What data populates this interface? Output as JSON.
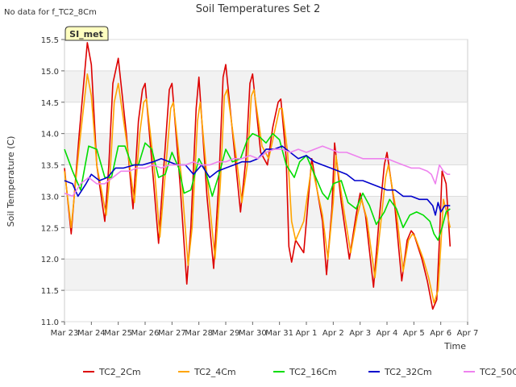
{
  "page": {
    "no_data_note": "No data for f_TC2_8Cm",
    "station_label": "SI_met"
  },
  "chart_data": {
    "type": "line",
    "title": "Soil Temperatures Set 2",
    "xlabel": "Time",
    "ylabel": "Soil Temperature (C)",
    "xlim": [
      0,
      15
    ],
    "ylim": [
      11.0,
      15.5
    ],
    "x_ticks": [
      {
        "value": 0,
        "label": "Mar 23"
      },
      {
        "value": 1,
        "label": "Mar 24"
      },
      {
        "value": 2,
        "label": "Mar 25"
      },
      {
        "value": 3,
        "label": "Mar 26"
      },
      {
        "value": 4,
        "label": "Mar 27"
      },
      {
        "value": 5,
        "label": "Mar 28"
      },
      {
        "value": 6,
        "label": "Mar 29"
      },
      {
        "value": 7,
        "label": "Mar 30"
      },
      {
        "value": 8,
        "label": "Mar 31"
      },
      {
        "value": 9,
        "label": "Apr 1"
      },
      {
        "value": 10,
        "label": "Apr 2"
      },
      {
        "value": 11,
        "label": "Apr 3"
      },
      {
        "value": 12,
        "label": "Apr 4"
      },
      {
        "value": 13,
        "label": "Apr 5"
      },
      {
        "value": 14,
        "label": "Apr 6"
      },
      {
        "value": 15,
        "label": "Apr 7"
      }
    ],
    "y_ticks": [
      "11.0",
      "11.5",
      "12.0",
      "12.5",
      "13.0",
      "13.5",
      "14.0",
      "14.5",
      "15.0",
      "15.5"
    ],
    "grid": true,
    "legend_position": "bottom",
    "series": [
      {
        "name": "TC2_2Cm",
        "color": "#dd0000",
        "x": [
          0.0,
          0.25,
          0.55,
          0.85,
          1.0,
          1.2,
          1.5,
          1.65,
          1.8,
          2.0,
          2.3,
          2.55,
          2.75,
          2.9,
          3.0,
          3.3,
          3.5,
          3.65,
          3.9,
          4.0,
          4.3,
          4.55,
          4.7,
          4.9,
          5.0,
          5.3,
          5.55,
          5.75,
          5.9,
          6.0,
          6.35,
          6.55,
          6.75,
          6.9,
          7.0,
          7.3,
          7.55,
          7.75,
          7.95,
          8.05,
          8.25,
          8.35,
          8.45,
          8.6,
          8.9,
          9.2,
          9.6,
          9.75,
          9.95,
          10.05,
          10.3,
          10.6,
          10.85,
          11.0,
          11.2,
          11.5,
          11.7,
          11.9,
          12.0,
          12.3,
          12.55,
          12.75,
          12.9,
          13.0,
          13.3,
          13.5,
          13.7,
          13.85,
          13.95,
          14.05,
          14.2,
          14.35
        ],
        "y": [
          13.45,
          12.4,
          14.0,
          15.45,
          15.1,
          13.5,
          12.6,
          13.5,
          14.8,
          15.2,
          14.0,
          12.8,
          14.2,
          14.7,
          14.8,
          13.3,
          12.25,
          13.2,
          14.7,
          14.8,
          13.2,
          11.6,
          12.5,
          14.4,
          14.9,
          13.0,
          11.85,
          13.3,
          14.9,
          15.1,
          13.6,
          12.75,
          13.6,
          14.8,
          14.95,
          13.7,
          13.5,
          14.1,
          14.5,
          14.55,
          13.6,
          12.2,
          11.95,
          12.3,
          12.1,
          13.6,
          12.6,
          11.75,
          12.8,
          13.85,
          12.9,
          12.0,
          12.7,
          13.05,
          12.7,
          11.55,
          12.6,
          13.5,
          13.7,
          12.8,
          11.65,
          12.3,
          12.45,
          12.4,
          12.0,
          11.65,
          11.2,
          11.35,
          12.3,
          13.4,
          13.2,
          12.2
        ]
      },
      {
        "name": "TC2_4Cm",
        "color": "#ffa500",
        "x": [
          0.0,
          0.25,
          0.55,
          0.85,
          1.0,
          1.2,
          1.55,
          1.7,
          1.85,
          2.0,
          2.3,
          2.6,
          2.8,
          2.95,
          3.05,
          3.35,
          3.55,
          3.7,
          3.95,
          4.05,
          4.35,
          4.6,
          4.75,
          4.95,
          5.05,
          5.35,
          5.6,
          5.8,
          5.95,
          6.05,
          6.4,
          6.6,
          6.8,
          6.95,
          7.05,
          7.35,
          7.6,
          7.8,
          8.0,
          8.1,
          8.3,
          8.45,
          8.6,
          8.9,
          9.2,
          9.6,
          9.8,
          10.0,
          10.1,
          10.35,
          10.65,
          10.9,
          11.05,
          11.25,
          11.55,
          11.75,
          11.95,
          12.05,
          12.35,
          12.6,
          12.8,
          12.95,
          13.05,
          13.35,
          13.55,
          13.75,
          13.9,
          14.0,
          14.1,
          14.25,
          14.35
        ],
        "y": [
          13.4,
          12.5,
          13.8,
          14.95,
          14.6,
          13.5,
          12.7,
          13.4,
          14.5,
          14.8,
          13.9,
          12.9,
          14.0,
          14.5,
          14.55,
          13.4,
          12.35,
          13.1,
          14.4,
          14.5,
          13.3,
          11.9,
          12.5,
          14.2,
          14.5,
          13.1,
          12.0,
          13.2,
          14.6,
          14.7,
          13.6,
          12.9,
          13.5,
          14.6,
          14.7,
          13.8,
          13.6,
          14.0,
          14.4,
          14.4,
          13.7,
          12.6,
          12.3,
          12.6,
          13.5,
          12.7,
          12.0,
          12.9,
          13.65,
          12.9,
          12.1,
          12.7,
          12.95,
          12.65,
          11.7,
          12.5,
          13.3,
          13.5,
          12.75,
          11.8,
          12.3,
          12.4,
          12.35,
          12.0,
          11.7,
          11.3,
          11.5,
          12.2,
          12.95,
          12.7,
          12.5
        ]
      },
      {
        "name": "TC2_16Cm",
        "color": "#00dd00",
        "x": [
          0.0,
          0.3,
          0.6,
          0.9,
          1.2,
          1.5,
          1.75,
          2.0,
          2.25,
          2.5,
          2.75,
          3.0,
          3.25,
          3.5,
          3.75,
          4.0,
          4.25,
          4.45,
          4.7,
          5.0,
          5.25,
          5.5,
          5.75,
          6.0,
          6.25,
          6.55,
          6.8,
          7.0,
          7.25,
          7.5,
          7.75,
          8.0,
          8.25,
          8.55,
          8.75,
          9.0,
          9.3,
          9.6,
          9.8,
          10.0,
          10.3,
          10.55,
          10.85,
          11.1,
          11.35,
          11.6,
          11.9,
          12.1,
          12.35,
          12.6,
          12.85,
          13.1,
          13.35,
          13.6,
          13.75,
          13.9,
          14.05,
          14.2,
          14.35
        ],
        "y": [
          13.75,
          13.4,
          13.1,
          13.8,
          13.75,
          13.3,
          13.3,
          13.8,
          13.8,
          13.5,
          13.5,
          13.85,
          13.75,
          13.3,
          13.35,
          13.7,
          13.45,
          13.05,
          13.1,
          13.6,
          13.4,
          13.0,
          13.35,
          13.75,
          13.55,
          13.6,
          13.9,
          14.0,
          13.95,
          13.85,
          14.0,
          13.9,
          13.5,
          13.3,
          13.55,
          13.65,
          13.35,
          13.05,
          12.95,
          13.2,
          13.25,
          12.9,
          12.8,
          13.05,
          12.85,
          12.55,
          12.75,
          12.95,
          12.8,
          12.5,
          12.7,
          12.75,
          12.7,
          12.6,
          12.4,
          12.3,
          12.5,
          12.75,
          12.8
        ]
      },
      {
        "name": "TC2_32Cm",
        "color": "#0000cc",
        "x": [
          0.0,
          0.3,
          0.5,
          0.8,
          1.0,
          1.3,
          1.6,
          1.9,
          2.2,
          2.6,
          2.9,
          3.3,
          3.6,
          3.9,
          4.2,
          4.5,
          4.8,
          5.1,
          5.4,
          5.7,
          6.0,
          6.3,
          6.6,
          6.9,
          7.2,
          7.5,
          7.8,
          8.1,
          8.4,
          8.7,
          9.0,
          9.3,
          9.6,
          9.9,
          10.2,
          10.5,
          10.8,
          11.1,
          11.4,
          11.7,
          12.0,
          12.3,
          12.6,
          12.9,
          13.2,
          13.5,
          13.7,
          13.8,
          13.9,
          14.0,
          14.15,
          14.35
        ],
        "y": [
          13.25,
          13.2,
          13.0,
          13.2,
          13.35,
          13.25,
          13.3,
          13.45,
          13.45,
          13.5,
          13.5,
          13.55,
          13.6,
          13.55,
          13.5,
          13.5,
          13.35,
          13.5,
          13.3,
          13.4,
          13.45,
          13.5,
          13.55,
          13.55,
          13.6,
          13.75,
          13.75,
          13.8,
          13.7,
          13.6,
          13.65,
          13.55,
          13.5,
          13.45,
          13.4,
          13.35,
          13.25,
          13.25,
          13.2,
          13.15,
          13.1,
          13.1,
          13.0,
          13.0,
          12.95,
          12.95,
          12.85,
          12.7,
          12.9,
          12.75,
          12.85,
          12.85
        ]
      },
      {
        "name": "TC2_50Cm",
        "color": "#ee82ee",
        "x": [
          0.0,
          0.3,
          0.6,
          0.9,
          1.2,
          1.5,
          1.8,
          2.1,
          2.4,
          2.7,
          3.0,
          3.3,
          3.6,
          3.9,
          4.2,
          4.5,
          4.8,
          5.1,
          5.4,
          5.7,
          6.0,
          6.3,
          6.6,
          6.9,
          7.2,
          7.5,
          7.8,
          8.1,
          8.4,
          8.7,
          9.0,
          9.3,
          9.6,
          9.9,
          10.2,
          10.5,
          10.8,
          11.1,
          11.4,
          11.7,
          12.0,
          12.3,
          12.6,
          12.9,
          13.2,
          13.5,
          13.65,
          13.8,
          13.95,
          14.1,
          14.25,
          14.35
        ],
        "y": [
          13.05,
          13.0,
          13.2,
          13.3,
          13.2,
          13.2,
          13.3,
          13.4,
          13.4,
          13.45,
          13.45,
          13.5,
          13.45,
          13.5,
          13.5,
          13.5,
          13.55,
          13.5,
          13.5,
          13.55,
          13.55,
          13.6,
          13.6,
          13.65,
          13.6,
          13.7,
          13.75,
          13.75,
          13.7,
          13.75,
          13.7,
          13.75,
          13.8,
          13.75,
          13.7,
          13.7,
          13.65,
          13.6,
          13.6,
          13.6,
          13.6,
          13.55,
          13.5,
          13.45,
          13.45,
          13.4,
          13.35,
          13.2,
          13.5,
          13.4,
          13.35,
          13.35
        ]
      }
    ]
  }
}
